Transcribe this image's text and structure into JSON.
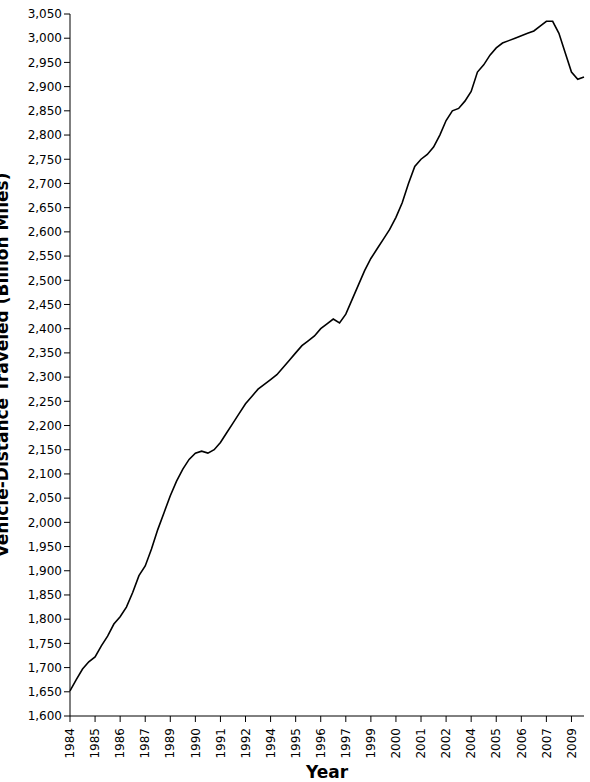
{
  "chart_data": {
    "type": "line",
    "x_label": "Year",
    "y_label": "Vehicle-Distance Traveled (Billion Miles)",
    "color": "#000000",
    "grid": false,
    "ylim": [
      1600,
      3050
    ],
    "yticks": [
      {
        "value": 1600,
        "label": "1,600"
      },
      {
        "value": 1650,
        "label": "1,650"
      },
      {
        "value": 1700,
        "label": "1,700"
      },
      {
        "value": 1750,
        "label": "1,750"
      },
      {
        "value": 1800,
        "label": "1,800"
      },
      {
        "value": 1850,
        "label": "1,850"
      },
      {
        "value": 1900,
        "label": "1,900"
      },
      {
        "value": 1950,
        "label": "1,950"
      },
      {
        "value": 2000,
        "label": "2,000"
      },
      {
        "value": 2050,
        "label": "2,050"
      },
      {
        "value": 2100,
        "label": "2,100"
      },
      {
        "value": 2150,
        "label": "2,150"
      },
      {
        "value": 2200,
        "label": "2,200"
      },
      {
        "value": 2250,
        "label": "2,250"
      },
      {
        "value": 2300,
        "label": "2,300"
      },
      {
        "value": 2350,
        "label": "2,350"
      },
      {
        "value": 2400,
        "label": "2,400"
      },
      {
        "value": 2450,
        "label": "2,450"
      },
      {
        "value": 2500,
        "label": "2,500"
      },
      {
        "value": 2550,
        "label": "2,550"
      },
      {
        "value": 2600,
        "label": "2,600"
      },
      {
        "value": 2650,
        "label": "2,650"
      },
      {
        "value": 2700,
        "label": "2,700"
      },
      {
        "value": 2750,
        "label": "2,750"
      },
      {
        "value": 2800,
        "label": "2,800"
      },
      {
        "value": 2850,
        "label": "2,850"
      },
      {
        "value": 2900,
        "label": "2,900"
      },
      {
        "value": 2950,
        "label": "2,950"
      },
      {
        "value": 3000,
        "label": "3,000"
      },
      {
        "value": 3050,
        "label": "3,050"
      }
    ],
    "categories": [
      "1984",
      null,
      null,
      null,
      "1985",
      null,
      null,
      null,
      "1986",
      null,
      null,
      null,
      "1987",
      null,
      null,
      null,
      "1989",
      null,
      null,
      null,
      "1990",
      null,
      null,
      null,
      "1991",
      null,
      null,
      null,
      "1992",
      null,
      null,
      null,
      "1994",
      null,
      null,
      null,
      "1995",
      null,
      null,
      null,
      "1996",
      null,
      null,
      null,
      "1997",
      null,
      null,
      null,
      "1999",
      null,
      null,
      null,
      "2000",
      null,
      null,
      null,
      "2001",
      null,
      null,
      null,
      "2002",
      null,
      null,
      null,
      "2004",
      null,
      null,
      null,
      "2005",
      null,
      null,
      null,
      "2006",
      null,
      null,
      null,
      "2007",
      null,
      null,
      null,
      "2009",
      null,
      null
    ],
    "values": [
      1652,
      1675,
      1697,
      1712,
      1722,
      1745,
      1765,
      1790,
      1805,
      1825,
      1855,
      1890,
      1910,
      1945,
      1985,
      2020,
      2055,
      2085,
      2110,
      2130,
      2143,
      2147,
      2143,
      2150,
      2165,
      2185,
      2205,
      2225,
      2245,
      2260,
      2275,
      2285,
      2295,
      2305,
      2320,
      2335,
      2350,
      2365,
      2375,
      2385,
      2400,
      2410,
      2420,
      2412,
      2430,
      2460,
      2490,
      2520,
      2545,
      2565,
      2585,
      2605,
      2630,
      2660,
      2700,
      2735,
      2750,
      2760,
      2775,
      2800,
      2830,
      2850,
      2855,
      2870,
      2890,
      2930,
      2945,
      2965,
      2980,
      2990,
      2995,
      3000,
      3005,
      3010,
      3015,
      3025,
      3035,
      3035,
      3010,
      2970,
      2930,
      2915,
      2920
    ]
  }
}
